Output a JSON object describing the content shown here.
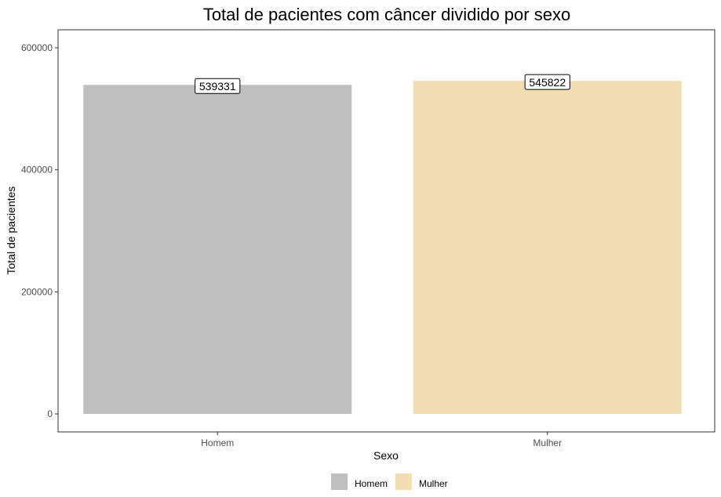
{
  "chart_data": {
    "type": "bar",
    "title": "Total de pacientes com câncer dividido por sexo",
    "xlabel": "Sexo",
    "ylabel": "Total de pacientes",
    "categories": [
      "Homem",
      "Mulher"
    ],
    "values": [
      539331,
      545822
    ],
    "data_labels": [
      "539331",
      "545822"
    ],
    "colors": [
      "#bfbfbf",
      "#f3ddb3"
    ],
    "ylim": [
      0,
      620000
    ],
    "yticks": [
      0,
      200000,
      400000,
      600000
    ],
    "ytick_labels": [
      "0",
      "200000",
      "400000",
      "600000"
    ],
    "grid": false,
    "legend": {
      "position": "bottom",
      "entries": [
        "Homem",
        "Mulher"
      ]
    }
  }
}
